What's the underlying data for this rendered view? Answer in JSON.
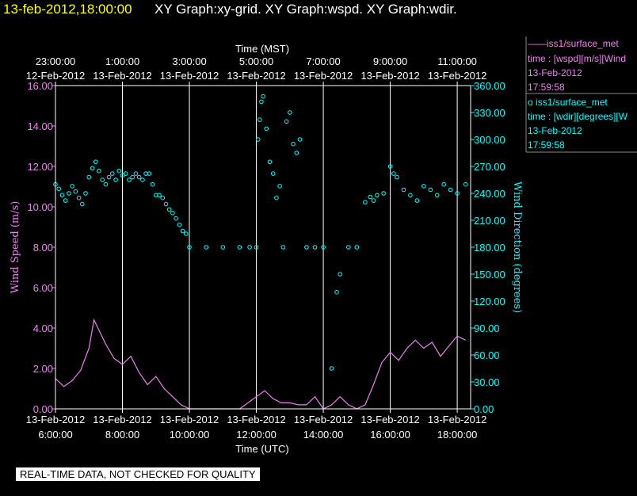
{
  "header": {
    "timestamp": "13-feb-2012,18:00:00",
    "graphs": "XY Graph:xy-grid.  XY Graph:wspd.  XY Graph:wdir."
  },
  "quality_notice": "REAL-TIME DATA, NOT CHECKED FOR QUALITY",
  "legend": [
    {
      "marker": "——",
      "name": "iss1/surface_met",
      "line2": "time : [wspd][m/s][Wind",
      "line3": "13-Feb-2012",
      "line4": "17:59:58",
      "color": "#ee82ee"
    },
    {
      "marker": "o",
      "name": "iss1/surface_met",
      "line2": "time : [wdir][degrees][W",
      "line3": "13-Feb-2012",
      "line4": "17:59:58",
      "color": "#00ffff"
    }
  ],
  "chart_data": {
    "type": "line",
    "title": "",
    "xlabel_bottom": "Time (UTC)",
    "xlabel_top": "Time (MST)",
    "ylabel_left": "Wind Speed (m/s)",
    "ylabel_right": "Wind Direction (degrees)",
    "xlim_utc_hours": [
      6,
      18.4
    ],
    "bottom_ticks": [
      {
        "h": 6,
        "date": "13-Feb-2012",
        "time": "6:00:00"
      },
      {
        "h": 8,
        "date": "13-Feb-2012",
        "time": "8:00:00"
      },
      {
        "h": 10,
        "date": "13-Feb-2012",
        "time": "10:00:00"
      },
      {
        "h": 12,
        "date": "13-Feb-2012",
        "time": "12:00:00"
      },
      {
        "h": 14,
        "date": "13-Feb-2012",
        "time": "14:00:00"
      },
      {
        "h": 16,
        "date": "13-Feb-2012",
        "time": "16:00:00"
      },
      {
        "h": 18,
        "date": "13-Feb-2012",
        "time": "18:00:00"
      }
    ],
    "top_ticks": [
      {
        "h": 6,
        "time": "23:00:00",
        "date": "12-Feb-2012"
      },
      {
        "h": 8,
        "time": "1:00:00",
        "date": "13-Feb-2012"
      },
      {
        "h": 10,
        "time": "3:00:00",
        "date": "13-Feb-2012"
      },
      {
        "h": 12,
        "time": "5:00:00",
        "date": "13-Feb-2012"
      },
      {
        "h": 14,
        "time": "7:00:00",
        "date": "13-Feb-2012"
      },
      {
        "h": 16,
        "time": "9:00:00",
        "date": "13-Feb-2012"
      },
      {
        "h": 18,
        "time": "11:00:00",
        "date": "13-Feb-2012"
      }
    ],
    "left_axis": {
      "min": 0,
      "max": 16,
      "ticks": [
        "0.00",
        "2.00",
        "4.00",
        "6.00",
        "8.00",
        "10.00",
        "12.00",
        "14.00",
        "16.00"
      ]
    },
    "right_axis": {
      "min": 0,
      "max": 360,
      "ticks": [
        "0.00",
        "30.00",
        "60.00",
        "90.00",
        "120.00",
        "150.00",
        "180.00",
        "210.00",
        "240.00",
        "270.00",
        "300.00",
        "330.00",
        "360.00"
      ]
    },
    "grid": "vertical",
    "series": [
      {
        "name": "iss1/surface_met",
        "field": "wspd",
        "axis": "left",
        "style": "line",
        "color": "#ee82ee",
        "x": [
          6.0,
          6.25,
          6.5,
          6.75,
          7.0,
          7.15,
          7.3,
          7.5,
          7.75,
          8.0,
          8.25,
          8.5,
          8.75,
          9.0,
          9.25,
          9.5,
          9.75,
          10.0,
          10.25,
          10.5,
          10.75,
          11.0,
          11.25,
          11.5,
          11.75,
          12.0,
          12.25,
          12.5,
          12.75,
          13.0,
          13.25,
          13.5,
          13.75,
          14.0,
          14.25,
          14.5,
          14.75,
          15.0,
          15.25,
          15.5,
          15.75,
          16.0,
          16.25,
          16.5,
          16.75,
          17.0,
          17.25,
          17.5,
          17.75,
          18.0,
          18.25
        ],
        "y": [
          1.5,
          1.1,
          1.4,
          1.9,
          3.0,
          4.4,
          3.9,
          3.2,
          2.5,
          2.2,
          2.6,
          1.8,
          1.2,
          1.6,
          1.0,
          0.6,
          0.2,
          0.0,
          0.0,
          0.0,
          0.0,
          0.0,
          0.0,
          0.0,
          0.3,
          0.6,
          0.9,
          0.5,
          0.3,
          0.3,
          0.2,
          0.2,
          0.6,
          0.0,
          0.2,
          0.6,
          0.2,
          0.0,
          0.2,
          1.2,
          2.3,
          2.8,
          2.4,
          3.0,
          3.4,
          3.0,
          3.3,
          2.6,
          3.1,
          3.6,
          3.4
        ]
      },
      {
        "name": "iss1/surface_met",
        "field": "wdir",
        "axis": "right",
        "style": "points",
        "color": "#00ffff",
        "x": [
          6.0,
          6.1,
          6.2,
          6.3,
          6.4,
          6.5,
          6.6,
          6.7,
          6.8,
          6.9,
          7.0,
          7.1,
          7.2,
          7.3,
          7.4,
          7.5,
          7.6,
          7.7,
          7.8,
          7.9,
          8.0,
          8.1,
          8.2,
          8.3,
          8.4,
          8.5,
          8.6,
          8.7,
          8.8,
          8.9,
          9.0,
          9.1,
          9.2,
          9.3,
          9.4,
          9.5,
          9.6,
          9.7,
          9.8,
          9.9,
          10.0,
          10.5,
          11.0,
          11.5,
          11.8,
          12.0,
          12.05,
          12.1,
          12.15,
          12.2,
          12.3,
          12.4,
          12.5,
          12.6,
          12.7,
          12.8,
          12.9,
          13.0,
          13.1,
          13.2,
          13.3,
          13.5,
          13.75,
          14.0,
          14.25,
          14.4,
          14.5,
          14.75,
          15.0,
          15.25,
          15.4,
          15.5,
          15.6,
          15.8,
          16.0,
          16.1,
          16.2,
          16.4,
          16.6,
          16.8,
          17.0,
          17.2,
          17.4,
          17.6,
          17.8,
          18.0,
          18.25
        ],
        "y": [
          250,
          245,
          238,
          232,
          240,
          248,
          242,
          235,
          228,
          240,
          258,
          268,
          275,
          265,
          255,
          250,
          258,
          262,
          255,
          265,
          260,
          262,
          255,
          258,
          262,
          258,
          255,
          262,
          262,
          250,
          238,
          238,
          235,
          228,
          222,
          218,
          212,
          205,
          198,
          195,
          180,
          180,
          180,
          180,
          180,
          180,
          300,
          322,
          342,
          348,
          312,
          275,
          262,
          235,
          248,
          180,
          320,
          330,
          295,
          285,
          300,
          180,
          180,
          180,
          45,
          130,
          150,
          180,
          180,
          230,
          236,
          232,
          238,
          240,
          270,
          262,
          258,
          244,
          238,
          232,
          248,
          244,
          238,
          250,
          244,
          240,
          250
        ]
      }
    ]
  }
}
